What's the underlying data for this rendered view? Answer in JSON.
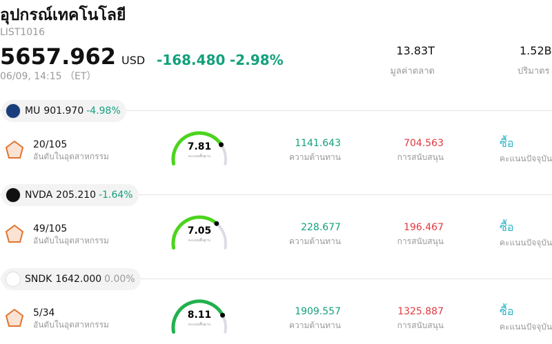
{
  "header": {
    "title": "อุปกรณ์เทคโนโลยี",
    "list_id": "LIST1016",
    "price": "5657.962",
    "currency": "USD",
    "change": "-168.480",
    "change_pct": "-2.98%",
    "datetime": "06/09, 14:15 （ET）",
    "market_cap": "13.83T",
    "market_cap_label": "มูลค่าตลาด",
    "volume": "1.52B",
    "volume_label": "ปริมาตร"
  },
  "gauge_range": [
    0,
    10
  ],
  "stocks": [
    {
      "ticker": "MU",
      "price": "901.970",
      "change_pct": "-4.98%",
      "change_color": "#13a07c",
      "rank": "20/105",
      "rank_label": "อันดับในอุตสาหกรรม",
      "score": 7.81,
      "score_label": "คะแนนพื้นฐาน",
      "gauge_color": "#4cd41e",
      "resistance": "1141.643",
      "resistance_label": "ความต้านทาน",
      "support": "704.563",
      "support_label": "การสนับสนุน",
      "rating": "ซื้อ",
      "rating_label": "คะแนนปัจจุบัน"
    },
    {
      "ticker": "NVDA",
      "price": "205.210",
      "change_pct": "-1.64%",
      "change_color": "#13a07c",
      "rank": "49/105",
      "rank_label": "อันดับในอุตสาหกรรม",
      "score": 7.05,
      "score_label": "คะแนนพื้นฐาน",
      "gauge_color": "#4cd41e",
      "resistance": "228.677",
      "resistance_label": "ความต้านทาน",
      "support": "196.467",
      "support_label": "การสนับสนุน",
      "rating": "ซื้อ",
      "rating_label": "คะแนนปัจจุบัน"
    },
    {
      "ticker": "SNDK",
      "price": "1642.000",
      "change_pct": "0.00%",
      "change_color": "#999999",
      "rank": "5/34",
      "rank_label": "อันดับในอุตสาหกรรม",
      "score": 8.11,
      "score_label": "คะแนนพื้นฐาน",
      "gauge_color": "#22b14c",
      "resistance": "1909.557",
      "resistance_label": "ความต้านทาน",
      "support": "1325.887",
      "support_label": "การสนับสนุน",
      "rating": "ซื้อ",
      "rating_label": "คะแนนปัจจุบัน"
    }
  ]
}
